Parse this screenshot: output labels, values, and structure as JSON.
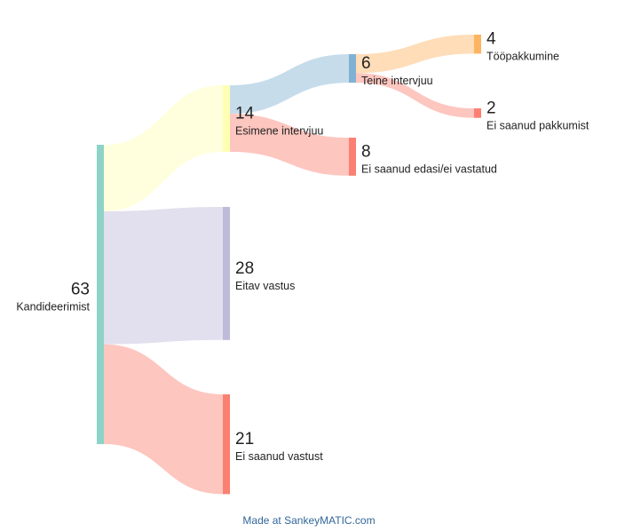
{
  "chart_data": {
    "type": "sankey",
    "nodes": [
      {
        "name": "Kandideerimist",
        "value": 63,
        "color": "#8dd3c7"
      },
      {
        "name": "Esimene intervjuu",
        "value": 14,
        "color": "#ffffb3"
      },
      {
        "name": "Eitav vastus",
        "value": 28,
        "color": "#bebada"
      },
      {
        "name": "Ei saanud vastust",
        "value": 21,
        "color": "#fb8072"
      },
      {
        "name": "Teine intervjuu",
        "value": 6,
        "color": "#80b1d3"
      },
      {
        "name": "Ei saanud edasi/ei vastatud",
        "value": 8,
        "color": "#fb8072"
      },
      {
        "name": "Tööpakkumine",
        "value": 4,
        "color": "#fdb462"
      },
      {
        "name": "Ei saanud pakkumist",
        "value": 2,
        "color": "#fb8072"
      }
    ],
    "links": [
      {
        "source": 0,
        "target": 1,
        "value": 14
      },
      {
        "source": 0,
        "target": 2,
        "value": 28
      },
      {
        "source": 0,
        "target": 3,
        "value": 21
      },
      {
        "source": 1,
        "target": 4,
        "value": 6
      },
      {
        "source": 1,
        "target": 5,
        "value": 8
      },
      {
        "source": 4,
        "target": 6,
        "value": 4
      },
      {
        "source": 4,
        "target": 7,
        "value": 2
      }
    ],
    "footer": "Made at SankeyMATIC.com"
  }
}
